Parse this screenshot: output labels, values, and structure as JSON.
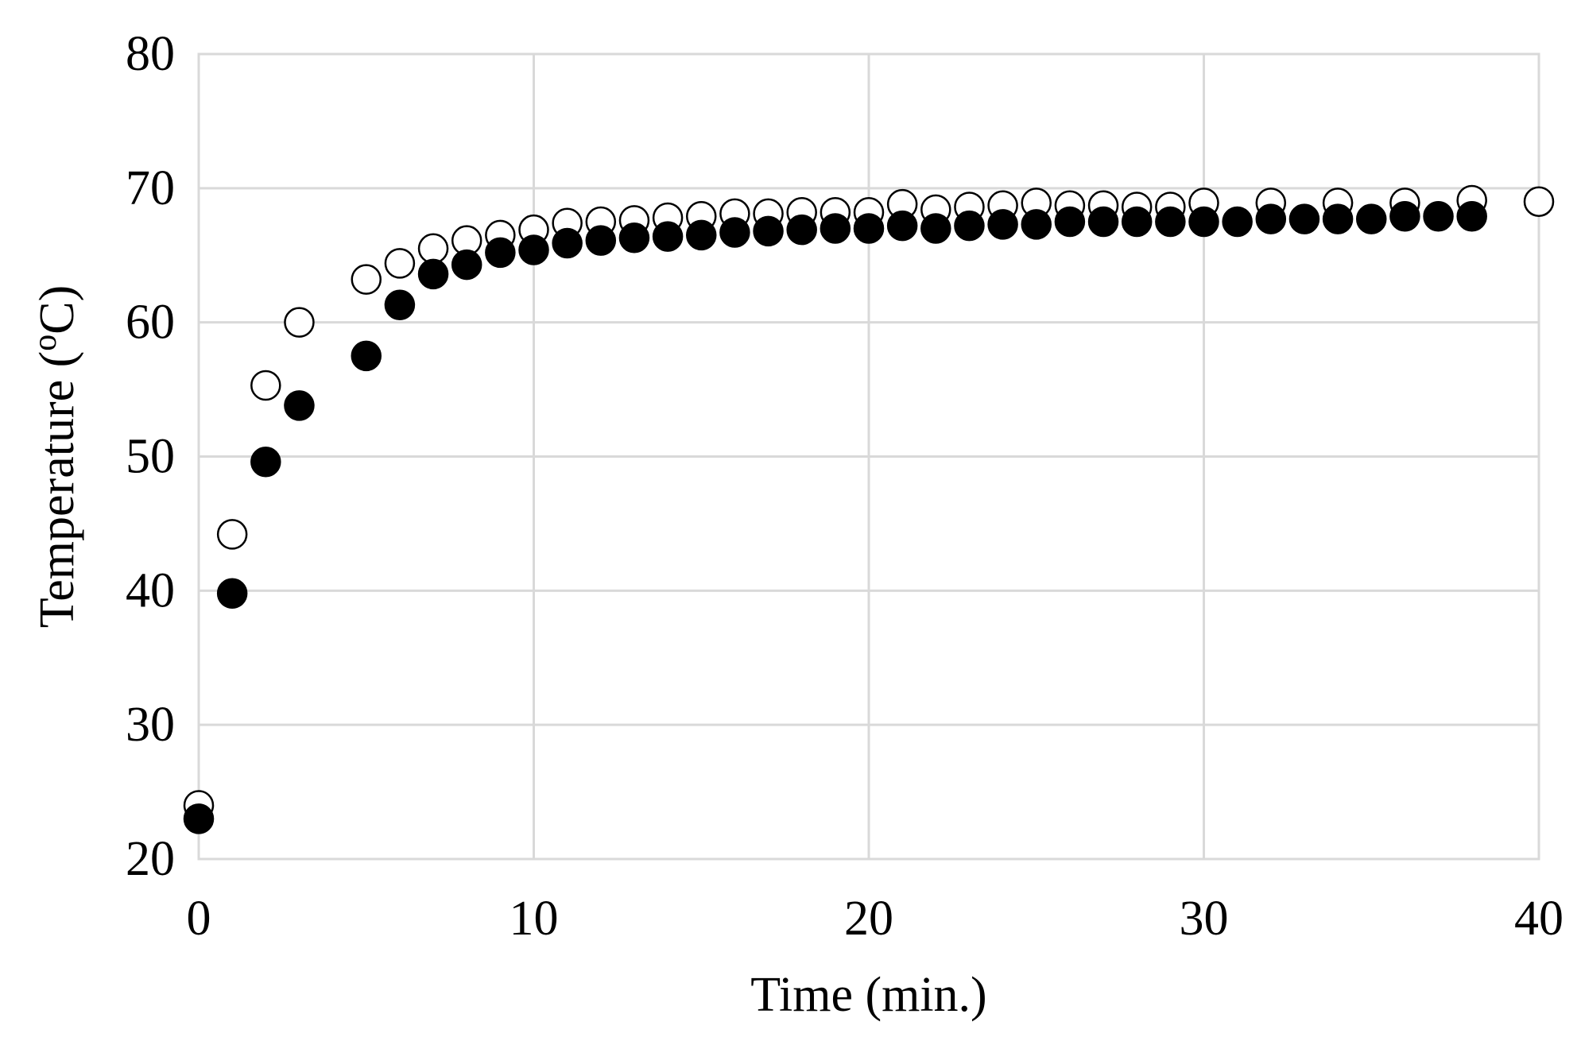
{
  "chart_data": {
    "type": "scatter",
    "title": "",
    "xlabel": "Time (min.)",
    "ylabel": "Temperature (°C)",
    "ylabel_parts": {
      "before": "Temperature (",
      "superscript": "o",
      "after": "C)"
    },
    "xlim": [
      0,
      40
    ],
    "ylim": [
      20,
      80
    ],
    "x_ticks": [
      0,
      10,
      20,
      30,
      40
    ],
    "y_ticks": [
      20,
      30,
      40,
      50,
      60,
      70,
      80
    ],
    "grid": true,
    "legend": "none",
    "series": [
      {
        "marker": "open-circle",
        "color": "#000000",
        "points": [
          [
            0,
            24
          ],
          [
            1,
            44.2
          ],
          [
            2,
            55.3
          ],
          [
            3,
            60
          ],
          [
            5,
            63.2
          ],
          [
            6,
            64.4
          ],
          [
            7,
            65.5
          ],
          [
            8,
            66.1
          ],
          [
            9,
            66.5
          ],
          [
            10,
            66.9
          ],
          [
            11,
            67.4
          ],
          [
            12,
            67.5
          ],
          [
            13,
            67.6
          ],
          [
            14,
            67.8
          ],
          [
            15,
            67.9
          ],
          [
            16,
            68.1
          ],
          [
            17,
            68.1
          ],
          [
            18,
            68.2
          ],
          [
            19,
            68.2
          ],
          [
            20,
            68.2
          ],
          [
            21,
            68.8
          ],
          [
            22,
            68.4
          ],
          [
            23,
            68.6
          ],
          [
            24,
            68.7
          ],
          [
            25,
            68.9
          ],
          [
            26,
            68.7
          ],
          [
            27,
            68.7
          ],
          [
            28,
            68.6
          ],
          [
            29,
            68.6
          ],
          [
            30,
            68.9
          ],
          [
            32,
            68.9
          ],
          [
            34,
            68.9
          ],
          [
            36,
            68.9
          ],
          [
            38,
            69.1
          ],
          [
            40,
            69
          ]
        ]
      },
      {
        "marker": "filled-circle",
        "color": "#000000",
        "points": [
          [
            0,
            23
          ],
          [
            1,
            39.8
          ],
          [
            2,
            49.6
          ],
          [
            3,
            53.8
          ],
          [
            5,
            57.5
          ],
          [
            6,
            61.3
          ],
          [
            7,
            63.6
          ],
          [
            8,
            64.3
          ],
          [
            9,
            65.2
          ],
          [
            10,
            65.4
          ],
          [
            11,
            65.9
          ],
          [
            12,
            66.1
          ],
          [
            13,
            66.3
          ],
          [
            14,
            66.4
          ],
          [
            15,
            66.5
          ],
          [
            16,
            66.7
          ],
          [
            17,
            66.8
          ],
          [
            18,
            66.9
          ],
          [
            19,
            67
          ],
          [
            20,
            67
          ],
          [
            21,
            67.2
          ],
          [
            22,
            67
          ],
          [
            23,
            67.2
          ],
          [
            24,
            67.3
          ],
          [
            25,
            67.3
          ],
          [
            26,
            67.5
          ],
          [
            27,
            67.5
          ],
          [
            28,
            67.5
          ],
          [
            29,
            67.5
          ],
          [
            30,
            67.5
          ],
          [
            31,
            67.5
          ],
          [
            32,
            67.7
          ],
          [
            33,
            67.7
          ],
          [
            34,
            67.7
          ],
          [
            35,
            67.7
          ],
          [
            36,
            67.9
          ],
          [
            37,
            67.9
          ],
          [
            38,
            67.9
          ]
        ]
      }
    ]
  }
}
